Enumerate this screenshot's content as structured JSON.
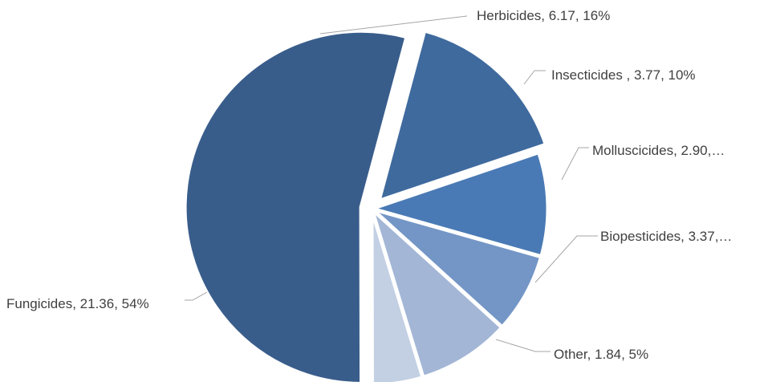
{
  "chart_data": {
    "type": "pie",
    "title": "",
    "slices": [
      {
        "key": "herbicides",
        "name": "Herbicides",
        "value": 6.17,
        "percent": 16,
        "color": "#3f6a9e",
        "label": "Herbicides, 6.17, 16%",
        "exploded": true
      },
      {
        "key": "insecticides",
        "name": "Insecticides ",
        "value": 3.77,
        "percent": 10,
        "color": "#4a7ab5",
        "label": "Insecticides , 3.77, 10%",
        "exploded": false
      },
      {
        "key": "molluscicides",
        "name": "Molluscicides",
        "value": 2.9,
        "percent": 7,
        "color": "#7496c6",
        "label": "Molluscicides, 2.90,…",
        "exploded": false
      },
      {
        "key": "biopesticides",
        "name": "Biopesticides",
        "value": 3.37,
        "percent": 9,
        "color": "#a3b6d6",
        "label": "Biopesticides, 3.37,…",
        "exploded": false
      },
      {
        "key": "other",
        "name": "Other",
        "value": 1.84,
        "percent": 5,
        "color": "#c3cfe3",
        "label": "Other, 1.84, 5%",
        "exploded": false
      },
      {
        "key": "fungicides",
        "name": "Fungicides",
        "value": 21.36,
        "percent": 54,
        "color": "#395d8b",
        "label": "Fungicides, 21.36, 54%",
        "exploded": true
      }
    ]
  }
}
